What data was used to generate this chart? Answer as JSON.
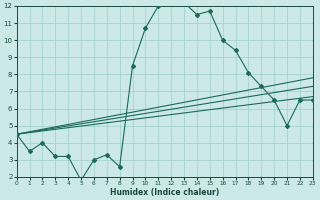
{
  "xlabel": "Humidex (Indice chaleur)",
  "bg_color": "#cce8e8",
  "grid_color": "#9fcfcf",
  "line_color": "#1a6b5a",
  "x_min": 0,
  "x_max": 23,
  "y_min": 2,
  "y_max": 12,
  "main_line_x": [
    0,
    1,
    2,
    3,
    4,
    5,
    6,
    7,
    8,
    9,
    10,
    11,
    12,
    13,
    14,
    15,
    16,
    17,
    18,
    19,
    20,
    21,
    22,
    23
  ],
  "main_line_y": [
    4.5,
    3.5,
    4.0,
    3.2,
    3.2,
    1.8,
    3.0,
    3.3,
    2.6,
    8.5,
    10.7,
    12.0,
    12.2,
    12.2,
    11.5,
    11.7,
    10.0,
    9.4,
    8.1,
    7.3,
    6.5,
    5.0,
    6.5,
    6.5
  ],
  "line2_x": [
    0,
    23
  ],
  "line2_y": [
    4.5,
    7.8
  ],
  "line3_x": [
    0,
    23
  ],
  "line3_y": [
    4.5,
    7.3
  ],
  "line4_x": [
    0,
    23
  ],
  "line4_y": [
    4.5,
    6.7
  ]
}
